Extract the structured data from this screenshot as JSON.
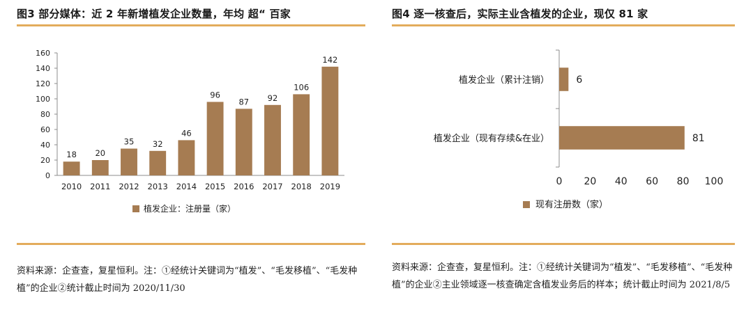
{
  "chart_data": [
    {
      "type": "bar",
      "title": "图3 部分媒体：近 2 年新增植发企业数量，年均 超“ 百家",
      "categories": [
        "2010",
        "2011",
        "2012",
        "2013",
        "2014",
        "2015",
        "2016",
        "2017",
        "2018",
        "2019"
      ],
      "series": [
        {
          "name": "植发企业：注册量（家）",
          "values": [
            18,
            20,
            35,
            32,
            46,
            96,
            87,
            92,
            106,
            142
          ]
        }
      ],
      "ylim": [
        0,
        160
      ],
      "yticks": [
        "0",
        "20",
        "40",
        "60",
        "80",
        "100",
        "120",
        "140",
        "160"
      ],
      "xlabel": "",
      "ylabel": "",
      "grid": false,
      "legend": "bottom",
      "bar_color": "#A67C52",
      "source": "资料来源：企查查，复星恒利。注：①经统计关键词为“植发”、“毛发移植”、“毛发种植”的企业②统计截止时间为 2020/11/30"
    },
    {
      "type": "bar",
      "orientation": "horizontal",
      "title": "图4 逐一核查后，实际主业含植发的企业，现仅 81 家",
      "categories": [
        "植发企业（累计注销）",
        "植发企业（现有存续&在业）"
      ],
      "series": [
        {
          "name": "现有注册数（家）",
          "values": [
            6,
            81
          ]
        }
      ],
      "xlim": [
        0,
        100
      ],
      "xticks": [
        "0",
        "20",
        "40",
        "60",
        "80",
        "100"
      ],
      "xlabel": "",
      "ylabel": "",
      "grid": false,
      "legend": "bottom",
      "bar_color": "#A67C52",
      "source": "资料来源：企查查，复星恒利。注：①经统计关键词为“植发”、“毛发移植”、“毛发种植”的企业②主业领域逐一核查确定含植发业务后的样本；统计截止时间为 2021/8/5"
    }
  ],
  "colors": {
    "accent_rule": "#E3AC5C",
    "bar": "#A67C52",
    "axis": "#8c8c8c"
  }
}
